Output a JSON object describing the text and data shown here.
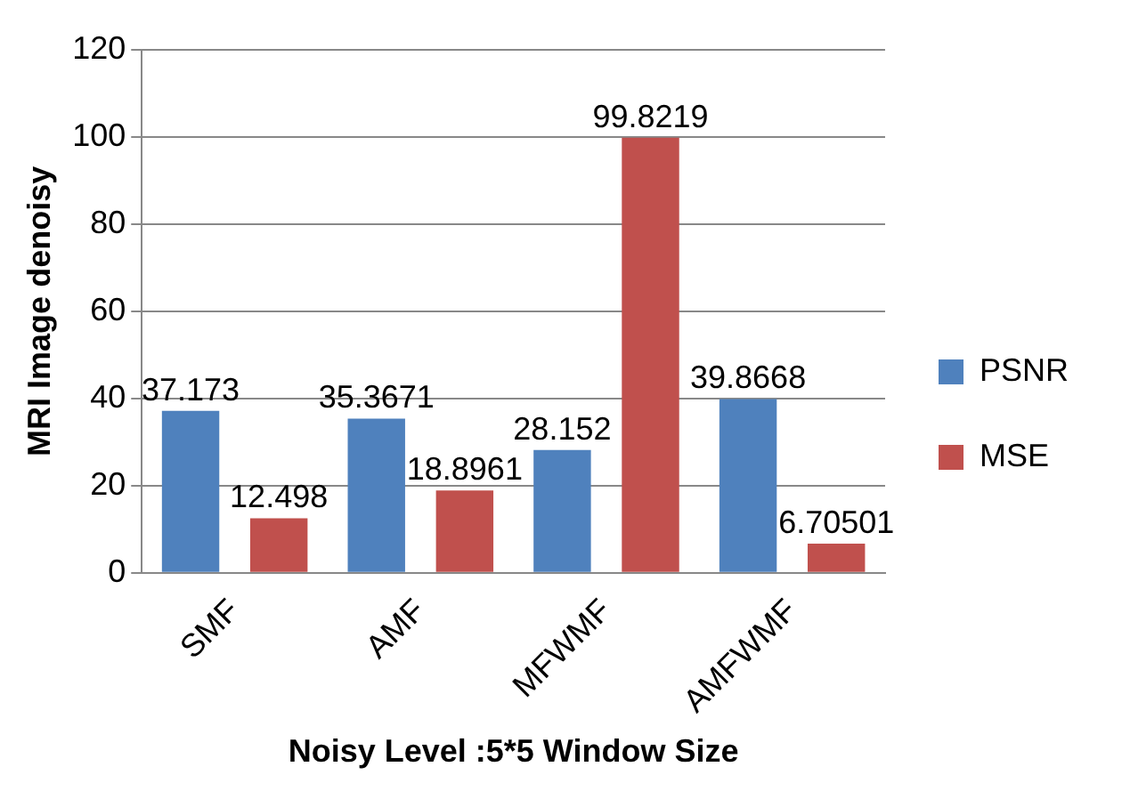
{
  "chart_data": {
    "type": "bar",
    "xlabel": "Noisy Level :5*5 Window Size",
    "ylabel": "MRI Image denoisy",
    "categories": [
      "SMF",
      "AMF",
      "MFWMF",
      "AMFWMF"
    ],
    "series": [
      {
        "name": "PSNR",
        "color": "#4f81bd",
        "values": [
          37.173,
          35.3671,
          28.152,
          39.8668
        ]
      },
      {
        "name": "MSE",
        "color": "#c0504d",
        "values": [
          12.498,
          18.8961,
          99.8219,
          6.70501
        ]
      }
    ],
    "ylim": [
      0,
      120
    ],
    "yticks": [
      0,
      20,
      40,
      60,
      80,
      100,
      120
    ],
    "grid": "y",
    "legend": "right",
    "data_labels": true
  }
}
